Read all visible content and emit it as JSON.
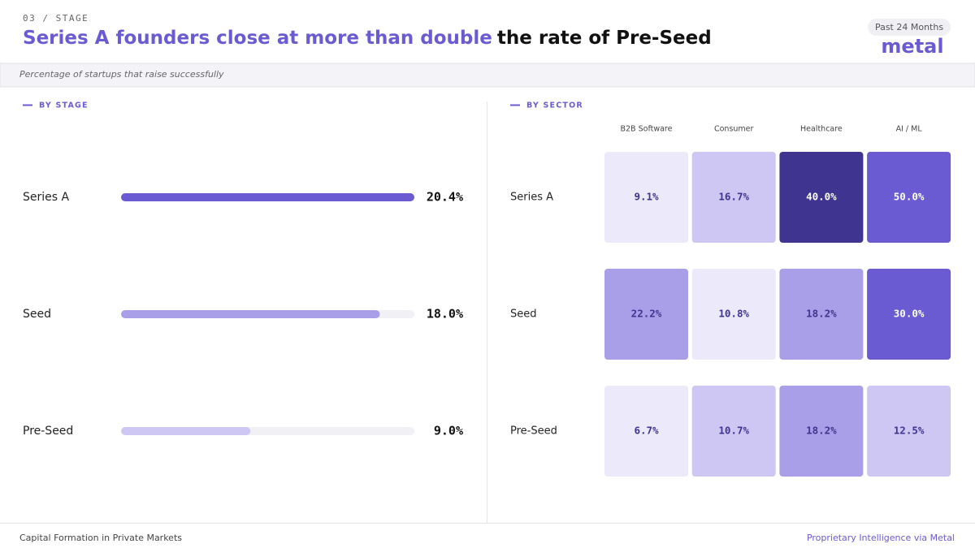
{
  "header": {
    "eyebrow": "03 / STAGE",
    "title_highlight": "Series A founders close at more than double",
    "title_rest": "the rate of Pre-Seed",
    "badge": "Past 24 Months",
    "logo": "metal"
  },
  "subtitle": "Percentage of startups that raise successfully",
  "chart_data": [
    {
      "type": "bar",
      "orientation": "horizontal",
      "title": "BY STAGE",
      "categories": [
        "Series A",
        "Seed",
        "Pre-Seed"
      ],
      "values": [
        20.4,
        18.0,
        9.0
      ],
      "value_labels": [
        "20.4%",
        "18.0%",
        "9.0%"
      ],
      "colors": [
        "#6b5bd2",
        "#a99ee8",
        "#cfc7f3"
      ],
      "xlim": [
        0,
        20.4
      ]
    },
    {
      "type": "heatmap",
      "title": "BY SECTOR",
      "x": [
        "B2B Software",
        "Consumer",
        "Healthcare",
        "AI / ML"
      ],
      "y": [
        "Series A",
        "Seed",
        "Pre-Seed"
      ],
      "values": [
        [
          9.1,
          16.7,
          40.0,
          50.0
        ],
        [
          22.2,
          10.8,
          18.2,
          30.0
        ],
        [
          6.7,
          10.7,
          18.2,
          12.5
        ]
      ],
      "value_labels": [
        [
          "9.1%",
          "16.7%",
          "40.0%",
          "50.0%"
        ],
        [
          "22.2%",
          "10.8%",
          "18.2%",
          "30.0%"
        ],
        [
          "6.7%",
          "10.7%",
          "18.2%",
          "12.5%"
        ]
      ],
      "colors": [
        [
          "#ece9fa",
          "#cfc7f3",
          "#3f3590",
          "#6b5bd2"
        ],
        [
          "#a99ee8",
          "#ece9fa",
          "#a99ee8",
          "#6b5bd2"
        ],
        [
          "#ece9fa",
          "#cfc7f3",
          "#a99ee8",
          "#cfc7f3"
        ]
      ]
    }
  ],
  "footer": {
    "left": "Capital Formation in Private Markets",
    "right": "Proprietary Intelligence via Metal"
  }
}
